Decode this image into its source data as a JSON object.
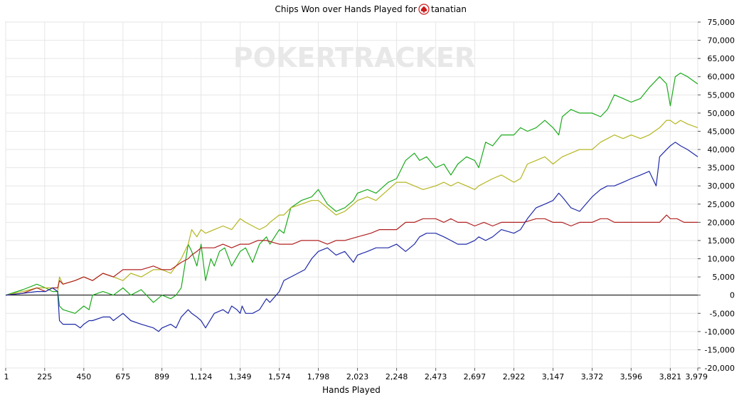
{
  "chart_data": {
    "type": "line",
    "title": "Chips Won over Hands Played for",
    "player_name": "tanatian",
    "player_icon": "pokerstars-spade-icon",
    "watermark": "POKERTRACKER",
    "xlabel": "Hands Played",
    "ylabel": "",
    "xlim": [
      1,
      3979
    ],
    "ylim": [
      -20000,
      75000
    ],
    "grid": true,
    "legend": "none",
    "x_ticks": [
      1,
      225,
      450,
      675,
      899,
      1124,
      1349,
      1574,
      1798,
      2023,
      2248,
      2473,
      2697,
      2922,
      3147,
      3372,
      3596,
      3821,
      3979
    ],
    "x_tick_labels": [
      "1",
      "225",
      "450",
      "675",
      "899",
      "1,124",
      "1,349",
      "1,574",
      "1,798",
      "2,023",
      "2,248",
      "2,473",
      "2,697",
      "2,922",
      "3,147",
      "3,372",
      "3,596",
      "3,821",
      "3,979"
    ],
    "y_ticks": [
      75000,
      70000,
      65000,
      60000,
      55000,
      50000,
      45000,
      40000,
      35000,
      30000,
      25000,
      20000,
      15000,
      10000,
      5000,
      0,
      -5000,
      -10000,
      -15000,
      -20000
    ],
    "y_tick_labels": [
      "75,000",
      "70,000",
      "65,000",
      "60,000",
      "55,000",
      "50,000",
      "45,000",
      "40,000",
      "35,000",
      "30,000",
      "25,000",
      "20,000",
      "15,000",
      "10,000",
      "5,000",
      "0",
      "-5,000",
      "-10,000",
      "-15,000",
      "-20,000"
    ],
    "series": [
      {
        "color": "#1aaa1a",
        "x": [
          1,
          100,
          180,
          230,
          270,
          300,
          310,
          330,
          400,
          450,
          480,
          500,
          560,
          620,
          675,
          720,
          780,
          850,
          900,
          950,
          980,
          1010,
          1050,
          1070,
          1100,
          1124,
          1150,
          1180,
          1200,
          1230,
          1260,
          1300,
          1349,
          1380,
          1420,
          1460,
          1500,
          1520,
          1574,
          1600,
          1640,
          1700,
          1760,
          1798,
          1850,
          1900,
          1950,
          2000,
          2023,
          2080,
          2130,
          2200,
          2248,
          2300,
          2350,
          2380,
          2420,
          2473,
          2520,
          2560,
          2600,
          2650,
          2697,
          2720,
          2760,
          2800,
          2850,
          2922,
          2960,
          3000,
          3050,
          3100,
          3147,
          3180,
          3200,
          3250,
          3300,
          3372,
          3420,
          3460,
          3500,
          3550,
          3596,
          3650,
          3700,
          3760,
          3800,
          3821,
          3850,
          3880,
          3920,
          3979
        ],
        "y": [
          0,
          1500,
          3000,
          2000,
          1000,
          1000,
          -3000,
          -4000,
          -5000,
          -3000,
          -4000,
          0,
          1000,
          0,
          2000,
          0,
          1500,
          -2000,
          0,
          -1000,
          0,
          2000,
          14000,
          12000,
          8000,
          14000,
          4000,
          10000,
          8000,
          12000,
          13000,
          8000,
          12000,
          13000,
          9000,
          14000,
          16000,
          14000,
          18000,
          17000,
          24000,
          26000,
          27000,
          29000,
          25000,
          23000,
          24000,
          26000,
          28000,
          29000,
          28000,
          31000,
          32000,
          37000,
          39000,
          37000,
          38000,
          35000,
          36000,
          33000,
          36000,
          38000,
          37000,
          35000,
          42000,
          41000,
          44000,
          44000,
          46000,
          45000,
          46000,
          48000,
          46000,
          44000,
          49000,
          51000,
          50000,
          50000,
          49000,
          51000,
          55000,
          54000,
          53000,
          54000,
          57000,
          60000,
          58000,
          52000,
          60000,
          61000,
          60000,
          58000
        ]
      },
      {
        "color": "#b5b520",
        "x": [
          1,
          100,
          180,
          230,
          270,
          300,
          310,
          330,
          400,
          450,
          500,
          560,
          620,
          675,
          720,
          780,
          850,
          900,
          950,
          980,
          1010,
          1050,
          1070,
          1100,
          1124,
          1150,
          1200,
          1250,
          1300,
          1349,
          1380,
          1420,
          1460,
          1500,
          1520,
          1574,
          1600,
          1640,
          1700,
          1760,
          1798,
          1850,
          1900,
          1950,
          2000,
          2023,
          2080,
          2130,
          2200,
          2248,
          2300,
          2350,
          2400,
          2473,
          2520,
          2560,
          2600,
          2650,
          2697,
          2720,
          2760,
          2800,
          2850,
          2922,
          2960,
          3000,
          3050,
          3100,
          3147,
          3200,
          3250,
          3300,
          3372,
          3420,
          3460,
          3500,
          3550,
          3596,
          3650,
          3700,
          3760,
          3800,
          3821,
          3850,
          3880,
          3920,
          3979
        ],
        "y": [
          0,
          1000,
          2000,
          2000,
          2000,
          1000,
          5000,
          3000,
          4000,
          5000,
          4000,
          6000,
          5000,
          4000,
          6000,
          5000,
          7000,
          7000,
          6000,
          8000,
          10000,
          14000,
          18000,
          16000,
          18000,
          17000,
          18000,
          19000,
          18000,
          21000,
          20000,
          19000,
          18000,
          19000,
          20000,
          22000,
          22000,
          24000,
          25000,
          26000,
          26000,
          24000,
          22000,
          23000,
          25000,
          26000,
          27000,
          26000,
          29000,
          31000,
          31000,
          30000,
          29000,
          30000,
          31000,
          30000,
          31000,
          30000,
          29000,
          30000,
          31000,
          32000,
          33000,
          31000,
          32000,
          36000,
          37000,
          38000,
          36000,
          38000,
          39000,
          40000,
          40000,
          42000,
          43000,
          44000,
          43000,
          44000,
          43000,
          44000,
          46000,
          48000,
          48000,
          47000,
          48000,
          47000,
          46000
        ]
      },
      {
        "color": "#b02020",
        "x": [
          1,
          100,
          180,
          230,
          270,
          300,
          310,
          330,
          400,
          450,
          500,
          560,
          620,
          675,
          720,
          780,
          850,
          900,
          950,
          980,
          1010,
          1050,
          1070,
          1100,
          1124,
          1150,
          1200,
          1250,
          1300,
          1349,
          1400,
          1450,
          1500,
          1574,
          1650,
          1700,
          1798,
          1850,
          1900,
          1950,
          2023,
          2100,
          2150,
          2248,
          2300,
          2350,
          2400,
          2473,
          2520,
          2560,
          2600,
          2650,
          2697,
          2750,
          2800,
          2850,
          2922,
          2980,
          3050,
          3100,
          3147,
          3200,
          3250,
          3300,
          3372,
          3420,
          3460,
          3500,
          3550,
          3596,
          3650,
          3700,
          3760,
          3800,
          3821,
          3860,
          3900,
          3979
        ],
        "y": [
          0,
          500,
          2000,
          1000,
          2000,
          2000,
          4000,
          3000,
          4000,
          5000,
          4000,
          6000,
          5000,
          7000,
          7000,
          7000,
          8000,
          7000,
          7000,
          8000,
          9000,
          10000,
          11000,
          12000,
          13000,
          13000,
          13000,
          14000,
          13000,
          14000,
          14000,
          15000,
          15000,
          14000,
          14000,
          15000,
          15000,
          14000,
          15000,
          15000,
          16000,
          17000,
          18000,
          18000,
          20000,
          20000,
          21000,
          21000,
          20000,
          21000,
          20000,
          20000,
          19000,
          20000,
          19000,
          20000,
          20000,
          20000,
          21000,
          21000,
          20000,
          20000,
          19000,
          20000,
          20000,
          21000,
          21000,
          20000,
          20000,
          20000,
          20000,
          20000,
          20000,
          22000,
          21000,
          21000,
          20000,
          20000
        ]
      },
      {
        "color": "#1f2aa8",
        "x": [
          1,
          100,
          180,
          230,
          270,
          300,
          310,
          330,
          400,
          430,
          450,
          480,
          500,
          560,
          600,
          620,
          675,
          720,
          780,
          850,
          880,
          900,
          950,
          980,
          1000,
          1010,
          1050,
          1070,
          1100,
          1124,
          1150,
          1200,
          1250,
          1280,
          1300,
          1330,
          1349,
          1360,
          1380,
          1420,
          1460,
          1500,
          1520,
          1574,
          1600,
          1640,
          1680,
          1720,
          1760,
          1798,
          1850,
          1900,
          1950,
          2000,
          2023,
          2080,
          2130,
          2200,
          2248,
          2300,
          2350,
          2380,
          2420,
          2473,
          2520,
          2560,
          2600,
          2650,
          2697,
          2720,
          2760,
          2800,
          2850,
          2922,
          2960,
          3000,
          3050,
          3100,
          3147,
          3180,
          3200,
          3250,
          3300,
          3372,
          3420,
          3460,
          3500,
          3550,
          3596,
          3650,
          3700,
          3740,
          3760,
          3800,
          3821,
          3850,
          3880,
          3920,
          3979
        ],
        "y": [
          0,
          500,
          1000,
          1000,
          2000,
          1000,
          -7000,
          -8000,
          -8000,
          -9000,
          -8000,
          -7000,
          -7000,
          -6000,
          -6000,
          -7000,
          -5000,
          -7000,
          -8000,
          -9000,
          -10000,
          -9000,
          -8000,
          -9000,
          -7000,
          -6000,
          -4000,
          -5000,
          -6000,
          -7000,
          -9000,
          -5000,
          -4000,
          -5000,
          -3000,
          -4000,
          -5000,
          -3000,
          -5000,
          -5000,
          -4000,
          -1000,
          -2000,
          1000,
          4000,
          5000,
          6000,
          7000,
          10000,
          12000,
          13000,
          11000,
          12000,
          9000,
          11000,
          12000,
          13000,
          13000,
          14000,
          12000,
          14000,
          16000,
          17000,
          17000,
          16000,
          15000,
          14000,
          14000,
          15000,
          16000,
          15000,
          16000,
          18000,
          17000,
          18000,
          21000,
          24000,
          25000,
          26000,
          28000,
          27000,
          24000,
          23000,
          27000,
          29000,
          30000,
          30000,
          31000,
          32000,
          33000,
          34000,
          30000,
          38000,
          40000,
          41000,
          42000,
          41000,
          40000,
          38000
        ]
      }
    ]
  }
}
